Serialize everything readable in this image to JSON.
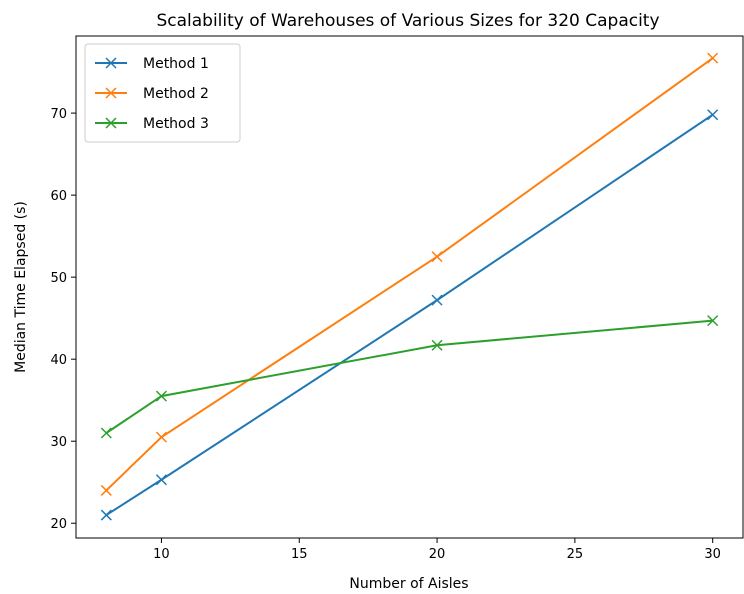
{
  "chart_data": {
    "type": "line",
    "title": "Scalability of Warehouses of Various Sizes for 320 Capacity",
    "xlabel": "Number of Aisles",
    "ylabel": "Median Time Elapsed (s)",
    "xlim": [
      6.9,
      31.1
    ],
    "ylim": [
      18.2,
      79.4
    ],
    "xticks": [
      10,
      15,
      20,
      25,
      30
    ],
    "yticks": [
      20,
      30,
      40,
      50,
      60,
      70
    ],
    "grid": false,
    "legend_position": "upper-left",
    "x": [
      8,
      10,
      20,
      30
    ],
    "series": [
      {
        "name": "Method 1",
        "color": "#1f77b4",
        "marker": "x",
        "values": [
          21.0,
          25.3,
          47.2,
          69.8
        ]
      },
      {
        "name": "Method 2",
        "color": "#ff7f0e",
        "marker": "x",
        "values": [
          24.0,
          30.5,
          52.5,
          76.7
        ]
      },
      {
        "name": "Method 3",
        "color": "#2ca02c",
        "marker": "x",
        "values": [
          31.0,
          35.5,
          41.7,
          44.7
        ]
      }
    ]
  }
}
